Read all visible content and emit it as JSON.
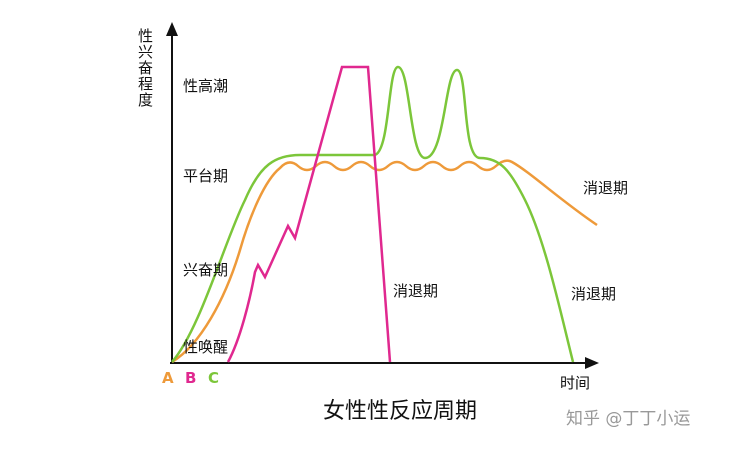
{
  "diagram": {
    "y_axis_label": "性兴奋程度",
    "x_axis_label": "时间",
    "stages": [
      "性高潮",
      "平台期",
      "兴奋期",
      "性唤醒"
    ],
    "curves": [
      {
        "label": "A"
      },
      {
        "label": "B"
      },
      {
        "label": "C"
      }
    ],
    "phase_labels": [
      "消退期",
      "消退期",
      "消退期"
    ],
    "title": "女性性反应周期",
    "watermark": "知乎 @丁丁小运"
  }
}
